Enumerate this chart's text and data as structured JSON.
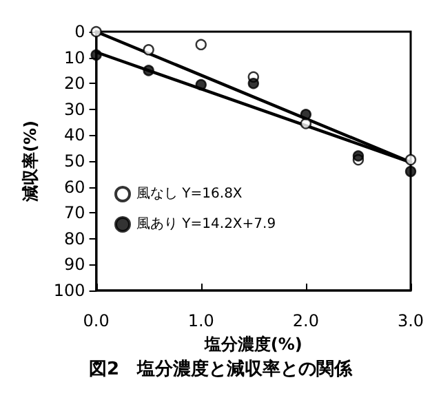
{
  "chart_data": {
    "type": "scatter",
    "title": "図2　塩分濃度と減収率との関係",
    "xlabel": "塩分濃度(%)",
    "ylabel": "減収率(%)",
    "xlim": [
      0,
      3
    ],
    "xticks": [
      {
        "value": 0,
        "label": "0.0"
      },
      {
        "value": 1,
        "label": "1.0"
      },
      {
        "value": 2,
        "label": "2.0"
      },
      {
        "value": 3,
        "label": "3.0"
      }
    ],
    "ylim": [
      100,
      0
    ],
    "yticks": [
      0,
      10,
      20,
      30,
      40,
      50,
      60,
      70,
      80,
      90,
      100
    ],
    "grid": false,
    "legend": "bottom left",
    "marker": "circle",
    "x": [
      0,
      0.5,
      1.0,
      1.5,
      2.0,
      2.5,
      3.0
    ],
    "series": [
      {
        "name": "風なし Y=16.8X",
        "color": "#ffffff",
        "values": [
          0,
          7,
          5,
          17.5,
          35.5,
          49.5,
          49.5
        ]
      },
      {
        "name": "風あり Y=14.2X+7.9",
        "color": "#000000",
        "values": [
          9,
          15,
          20.5,
          20,
          32,
          48,
          54
        ]
      },
      {
        "type": "line",
        "color": "#000000",
        "marker": "none",
        "values": [
          0,
          null,
          null,
          null,
          null,
          null,
          50.4
        ]
      },
      {
        "type": "line",
        "color": "#000000",
        "marker": "none",
        "values": [
          7.9,
          null,
          null,
          null,
          null,
          null,
          50.5
        ]
      }
    ]
  }
}
